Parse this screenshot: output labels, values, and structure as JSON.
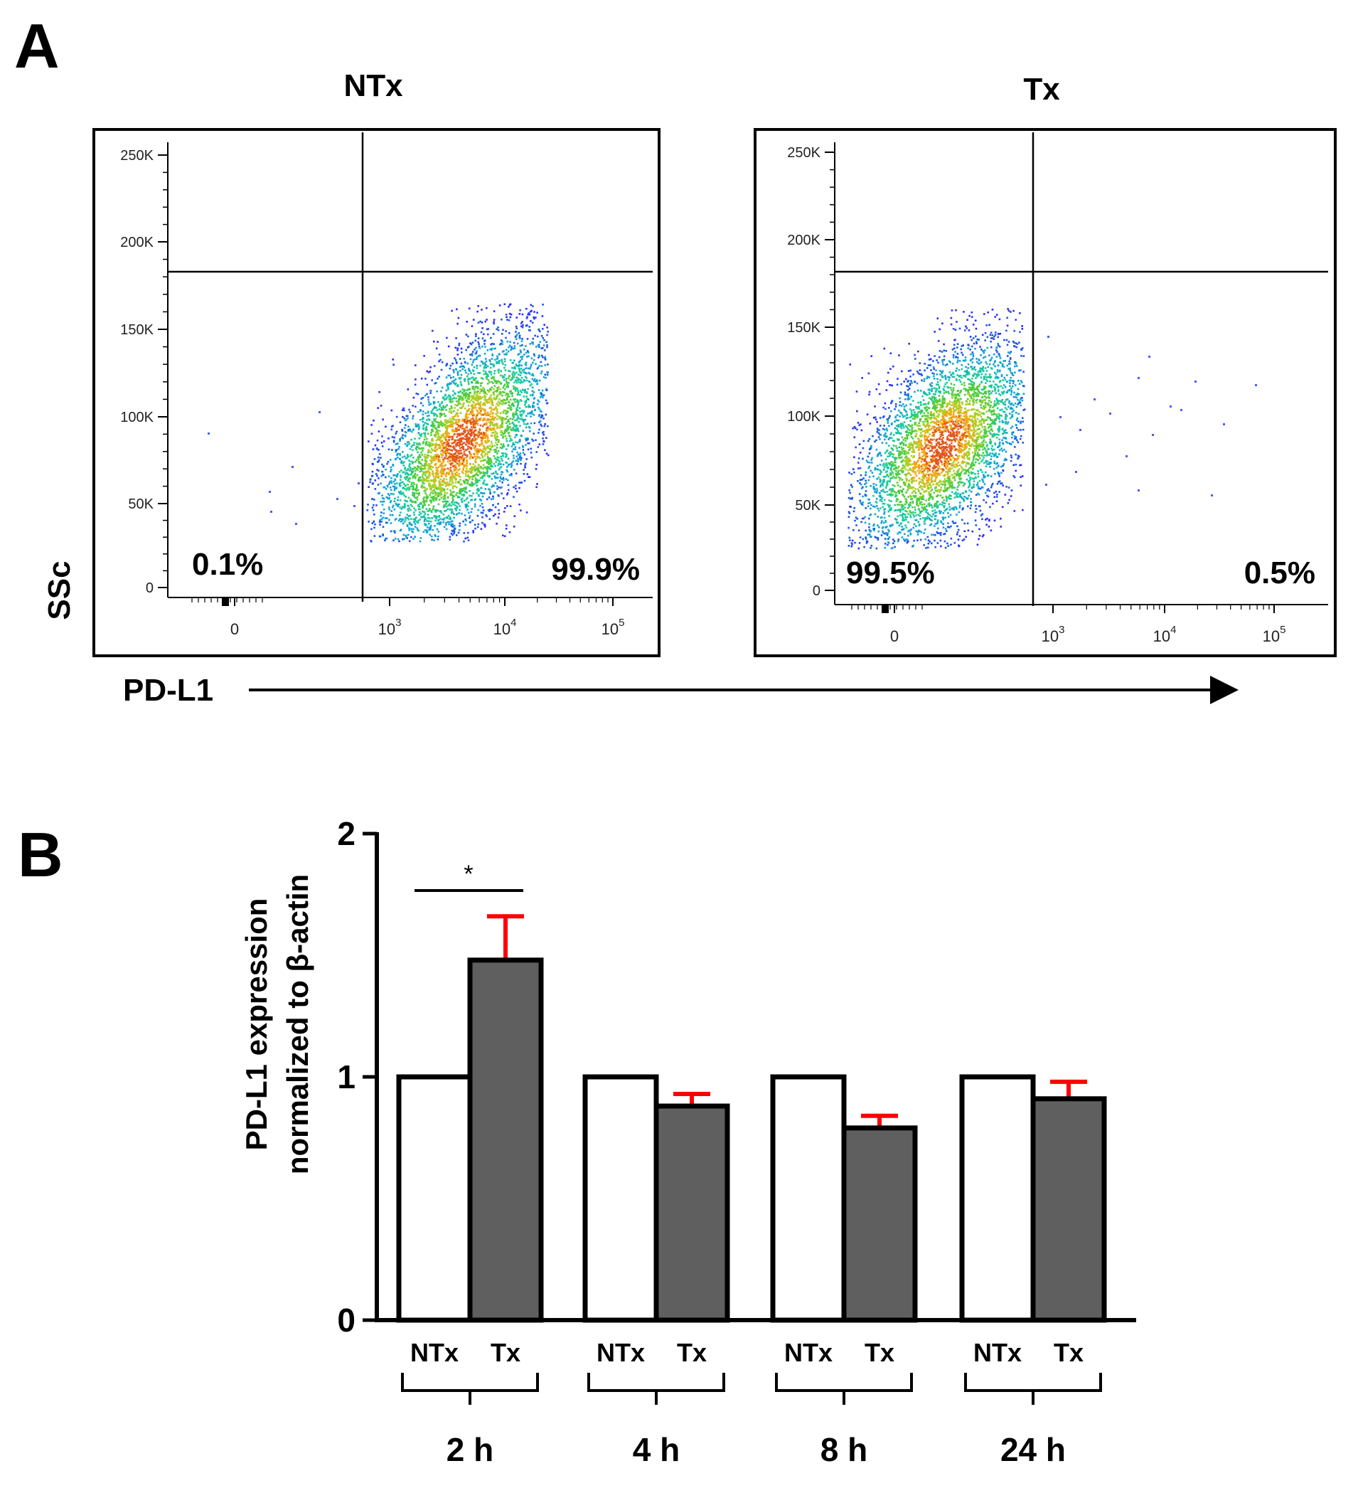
{
  "panel_a": {
    "letter": "A",
    "x_axis_label": "PD-L1",
    "y_axis_label": "SSc",
    "y_ticks": [
      "250K",
      "200K",
      "150K",
      "100K",
      "50K",
      "0"
    ],
    "plots": [
      {
        "title": "NTx",
        "x_ticks": [
          {
            "base": "0",
            "exp": ""
          },
          {
            "base": "10",
            "exp": "3"
          },
          {
            "base": "10",
            "exp": "4"
          },
          {
            "base": "10",
            "exp": "5"
          }
        ],
        "left_pct": "0.1%",
        "right_pct": "99.9%"
      },
      {
        "title": "Tx",
        "x_ticks": [
          {
            "base": "0",
            "exp": ""
          },
          {
            "base": "10",
            "exp": "3"
          },
          {
            "base": "10",
            "exp": "4"
          },
          {
            "base": "10",
            "exp": "5"
          }
        ],
        "left_pct": "99.5%",
        "right_pct": "0.5%"
      }
    ]
  },
  "panel_b": {
    "letter": "B",
    "y_label_line1": "PD-L1 expression",
    "y_label_line2": "normalized to β-actin",
    "significance": "*",
    "colors": {
      "ntx_fill": "#ffffff",
      "tx_fill": "#5f5f5f",
      "error": "#ff0000",
      "axis": "#000000"
    }
  },
  "chart_data": {
    "type": "bar",
    "categories": [
      "2 h",
      "4 h",
      "8 h",
      "24 h"
    ],
    "bar_labels": [
      "NTx",
      "Tx"
    ],
    "series": [
      {
        "name": "NTx",
        "values": [
          1.0,
          1.0,
          1.0,
          1.0
        ],
        "errors": [
          0,
          0,
          0,
          0
        ]
      },
      {
        "name": "Tx",
        "values": [
          1.48,
          0.88,
          0.79,
          0.91
        ],
        "errors": [
          0.18,
          0.05,
          0.05,
          0.07
        ]
      }
    ],
    "ylim": [
      0,
      2
    ],
    "yticks": [
      0,
      1,
      2
    ],
    "significance": [
      {
        "category": "2 h",
        "label": "*"
      }
    ]
  }
}
